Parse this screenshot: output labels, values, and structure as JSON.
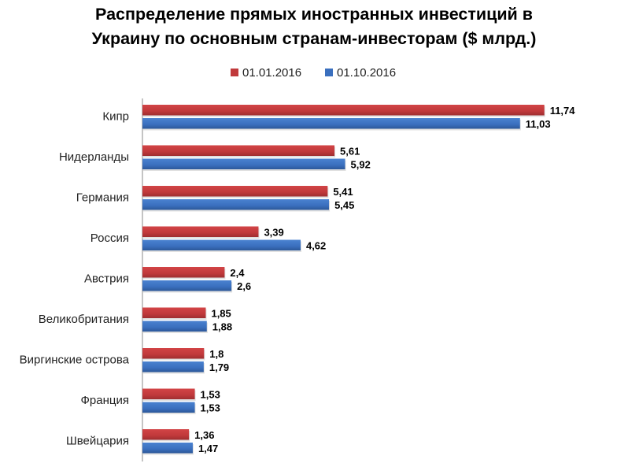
{
  "chart_data": {
    "type": "bar",
    "orientation": "horizontal",
    "title_lines": [
      "Распределение прямых иностранных инвестиций в",
      "Украину по основным странам-инвесторам ($ млрд.)"
    ],
    "categories": [
      "Кипр",
      "Нидерланды",
      "Германия",
      "Россия",
      "Австрия",
      "Великобритания",
      "Виргинские острова",
      "Франция",
      "Швейцария"
    ],
    "series": [
      {
        "name": "01.01.2016",
        "color": "#c0393b",
        "values": [
          11.74,
          5.61,
          5.41,
          3.39,
          2.4,
          1.85,
          1.8,
          1.53,
          1.36
        ],
        "labels": [
          "11,74",
          "5,61",
          "5,41",
          "3,39",
          "2,4",
          "1,85",
          "1,8",
          "1,53",
          "1,36"
        ]
      },
      {
        "name": "01.10.2016",
        "color": "#3a6fbe",
        "values": [
          11.03,
          5.92,
          5.45,
          4.62,
          2.6,
          1.88,
          1.79,
          1.53,
          1.47
        ],
        "labels": [
          "11,03",
          "5,92",
          "5,45",
          "4,62",
          "2,6",
          "1,88",
          "1,79",
          "1,53",
          "1,47"
        ]
      }
    ],
    "xlim": [
      0,
      13
    ],
    "grid": false,
    "legend_position": "top"
  }
}
